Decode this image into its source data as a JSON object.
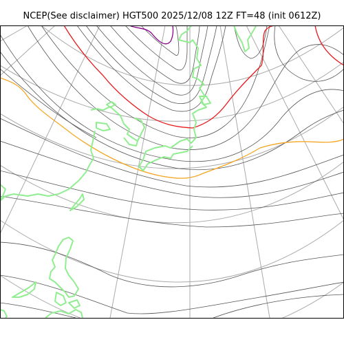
{
  "map": {
    "title": "NCEP(See disclaimer) HGT500 2025/12/08 12Z FT=48 (init 0612Z)",
    "colors": {
      "background": "#ffffff",
      "frame": "#000000",
      "graticule": "#aaaaaa",
      "contour": "#555555",
      "contour_5400": "#f5a623",
      "contour_5700": "#e8191c",
      "contour_4800": "#8b008b",
      "coastline": "#90ee90"
    },
    "layers": [
      "graticule",
      "height-contours",
      "coastline"
    ]
  }
}
